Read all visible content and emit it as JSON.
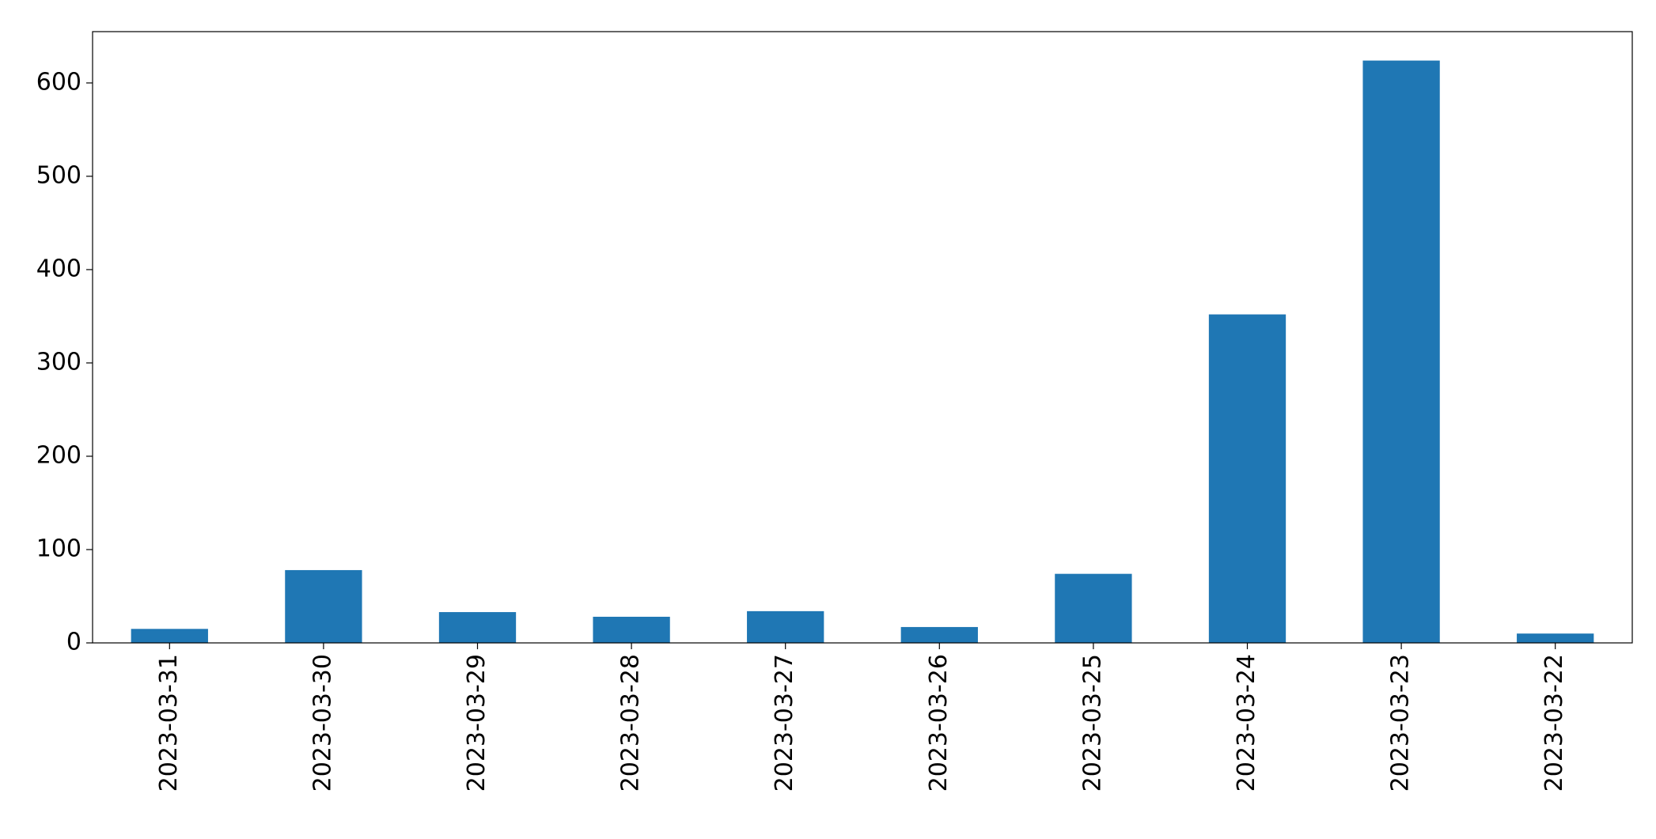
{
  "chart_data": {
    "type": "bar",
    "categories": [
      "2023-03-31",
      "2023-03-30",
      "2023-03-29",
      "2023-03-28",
      "2023-03-27",
      "2023-03-26",
      "2023-03-25",
      "2023-03-24",
      "2023-03-23",
      "2023-03-22"
    ],
    "values": [
      15,
      78,
      33,
      28,
      34,
      17,
      74,
      352,
      624,
      10
    ],
    "color": "#1f77b4",
    "ylim": [
      0,
      655
    ],
    "yticks": [
      0,
      100,
      200,
      300,
      400,
      500,
      600
    ],
    "grid": false
  }
}
